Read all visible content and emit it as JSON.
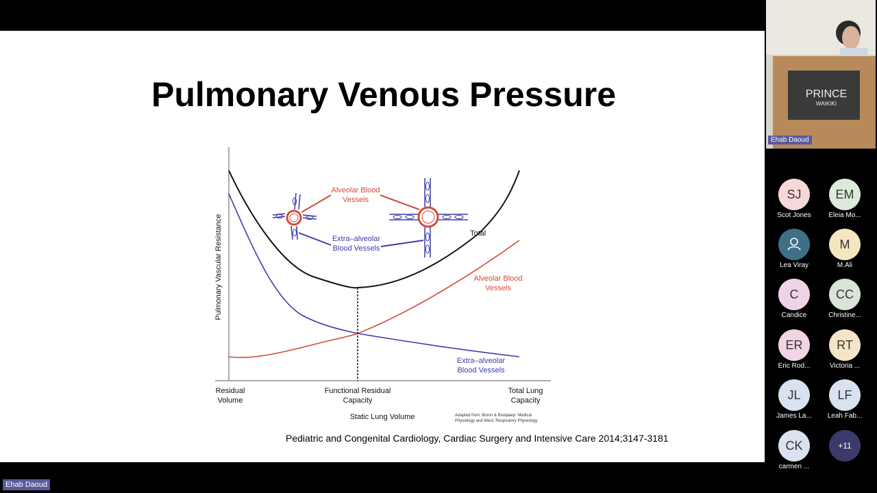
{
  "slide": {
    "title": "Pulmonary Venous Pressure",
    "citation": "Pediatric and Congenital Cardiology, Cardiac Surgery and Intensive Care 2014;3147-3181"
  },
  "figure": {
    "ylabel": "Pulmonary Vascular Resistance",
    "xlabel": "Static Lung Volume",
    "x_labels": [
      {
        "line1": "Residual",
        "line2": "Volume"
      },
      {
        "line1": "Functional Residual",
        "line2": "Capacity"
      },
      {
        "line1": "Total Lung",
        "line2": "Capacity"
      }
    ],
    "curve_labels": {
      "total": "Total",
      "alveolar_1": "Alveolar Blood",
      "alveolar_2": "Vessels",
      "extra_1": "Extra–alveolar",
      "extra_2": "Blood Vessels"
    },
    "inset_labels": {
      "alveolar_1": "Alveolar Blood",
      "alveolar_2": "Vessels",
      "extra_1": "Extra–alveolar",
      "extra_2": "Blood Vessels"
    },
    "source_note": {
      "line1": "Adapted from: Boron & Boulpaep: Medical",
      "line2": "Physiology and West: Respiratory Physiology"
    },
    "colors": {
      "total": "#111111",
      "alveolar": "#d24a3a",
      "extra": "#3b3ba8"
    }
  },
  "presenter": {
    "name": "Ehab Daoud"
  },
  "video": {
    "name": "Ehab Daoud",
    "sign_line1": "PRINCE",
    "sign_line2": "WAIKIKI"
  },
  "participants": [
    {
      "initials": "SJ",
      "name": "Scot Jones",
      "color": "#f6d9d6"
    },
    {
      "initials": "EM",
      "name": "Eleia Mo...",
      "color": "#dcebd9"
    },
    {
      "initials": "",
      "name": "Lea Viray",
      "color": "#3f6f86",
      "icon": "person-icon"
    },
    {
      "initials": "M",
      "name": "M.Ali",
      "color": "#f6e6c0"
    },
    {
      "initials": "C",
      "name": "Candice",
      "color": "#f0d3e6"
    },
    {
      "initials": "CC",
      "name": "Christine...",
      "color": "#d8e4d5"
    },
    {
      "initials": "ER",
      "name": "Eric Rod...",
      "color": "#f2d4e4"
    },
    {
      "initials": "RT",
      "name": "Victoria ...",
      "color": "#f6e4c8"
    },
    {
      "initials": "JL",
      "name": "James La...",
      "color": "#d9e2f0"
    },
    {
      "initials": "LF",
      "name": "Leah Fab...",
      "color": "#d9e2f0"
    },
    {
      "initials": "CK",
      "name": "carmen ...",
      "color": "#d9e2f0"
    }
  ],
  "more": {
    "label": "+11"
  }
}
